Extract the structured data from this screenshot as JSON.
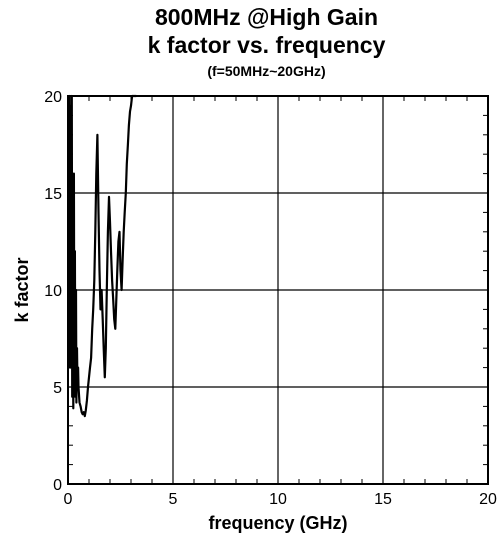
{
  "chart_data": {
    "type": "line",
    "title": "800MHz @High Gain",
    "subtitle": "k factor vs. frequency",
    "note": "(f=50MHz~20GHz)",
    "xlabel": "frequency (GHz)",
    "ylabel": "k factor",
    "xlim": [
      0,
      20
    ],
    "ylim": [
      0,
      20
    ],
    "xticks": [
      0,
      5,
      10,
      15,
      20
    ],
    "yticks": [
      0,
      5,
      10,
      15,
      20
    ],
    "grid": true,
    "series": [
      {
        "color": "#000000",
        "x": [
          0.05,
          0.07,
          0.1,
          0.12,
          0.15,
          0.18,
          0.2,
          0.22,
          0.25,
          0.28,
          0.3,
          0.33,
          0.35,
          0.38,
          0.4,
          0.43,
          0.45,
          0.48,
          0.5,
          0.55,
          0.6,
          0.65,
          0.7,
          0.75,
          0.8,
          0.85,
          0.9,
          0.95,
          1.0,
          1.05,
          1.1,
          1.15,
          1.2,
          1.25,
          1.3,
          1.35,
          1.4,
          1.45,
          1.5,
          1.55,
          1.6,
          1.65,
          1.7,
          1.75,
          1.8,
          1.85,
          1.9,
          1.95,
          2.0,
          2.05,
          2.1,
          2.15,
          2.2,
          2.25,
          2.3,
          2.35,
          2.4,
          2.45,
          2.5,
          2.55,
          2.6,
          2.65,
          2.7,
          2.75,
          2.8,
          2.85,
          2.9,
          2.95,
          3.0,
          3.05,
          3.1,
          3.15,
          3.2,
          3.25
        ],
        "y": [
          9.5,
          20.0,
          6.0,
          19.5,
          9.0,
          20.0,
          4.5,
          13.0,
          3.9,
          16.0,
          6.0,
          12.0,
          4.5,
          10.0,
          4.2,
          7.0,
          5.0,
          6.0,
          5.0,
          4.2,
          4.0,
          3.7,
          3.6,
          3.7,
          3.5,
          3.8,
          4.3,
          5.0,
          5.5,
          6.0,
          6.5,
          8.0,
          9.0,
          10.5,
          13.0,
          16.0,
          18.0,
          14.0,
          11.0,
          9.0,
          10.0,
          8.5,
          7.0,
          5.5,
          7.0,
          10.0,
          13.0,
          14.8,
          13.5,
          12.0,
          10.5,
          9.5,
          8.5,
          8.0,
          9.5,
          11.0,
          12.5,
          13.0,
          11.0,
          10.0,
          11.5,
          13.0,
          14.0,
          15.0,
          16.5,
          17.5,
          18.5,
          19.2,
          19.5,
          20.0,
          20.0,
          20.0,
          20.0,
          20.0
        ]
      }
    ]
  }
}
